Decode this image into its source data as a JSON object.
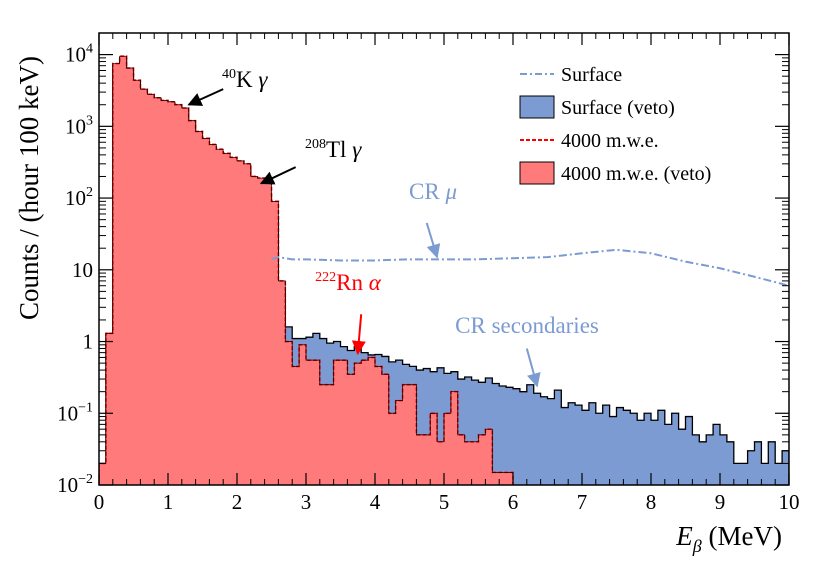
{
  "chart_data": {
    "type": "histogram",
    "title": "",
    "xlabel_main": "E",
    "xlabel_sub": "β",
    "xlabel_unit": " (MeV)",
    "ylabel": "Counts / (hour 100 keV)",
    "xlim": [
      0,
      10
    ],
    "ylim": [
      0.01,
      20000
    ],
    "yscale": "log",
    "x_ticks": [
      0,
      1,
      2,
      3,
      4,
      5,
      6,
      7,
      8,
      9,
      10
    ],
    "y_ticks": [
      {
        "value": 0.01,
        "base": "10",
        "exp": "−2"
      },
      {
        "value": 0.1,
        "base": "10",
        "exp": "−1"
      },
      {
        "value": 1,
        "base": "1",
        "exp": ""
      },
      {
        "value": 10,
        "base": "10",
        "exp": ""
      },
      {
        "value": 100,
        "base": "10",
        "exp": "2"
      },
      {
        "value": 1000,
        "base": "10",
        "exp": "3"
      },
      {
        "value": 10000,
        "base": "10",
        "exp": "4"
      }
    ],
    "legend_position": "top-right",
    "legend": [
      {
        "label": "Surface",
        "style": "dash-dot",
        "color": "#7b9bd2"
      },
      {
        "label": "Surface (veto)",
        "style": "fill",
        "color": "#7b9bd2"
      },
      {
        "label": "4000 m.w.e.",
        "style": "dashed",
        "color": "#ff0000"
      },
      {
        "label": "4000 m.w.e. (veto)",
        "style": "fill",
        "color": "#ff7b7b"
      }
    ],
    "bin_edges_start": 0,
    "bin_width": 0.1,
    "series": [
      {
        "name": "Surface (veto)",
        "style": "filled-step",
        "fill": "#7b9bd2",
        "values": [
          0.02,
          1.3,
          7000,
          9000,
          6000,
          4200,
          3200,
          2700,
          2400,
          2200,
          2100,
          1900,
          1600,
          1100,
          750,
          600,
          480,
          400,
          360,
          330,
          300,
          280,
          150,
          130,
          110,
          55,
          5.5,
          1.6,
          1.1,
          1.1,
          1.15,
          1.3,
          1.1,
          0.95,
          1.0,
          0.85,
          0.75,
          0.85,
          0.7,
          0.65,
          0.66,
          0.62,
          0.52,
          0.55,
          0.48,
          0.45,
          0.4,
          0.42,
          0.38,
          0.43,
          0.36,
          0.38,
          0.3,
          0.32,
          0.29,
          0.27,
          0.31,
          0.26,
          0.24,
          0.23,
          0.22,
          0.2,
          0.25,
          0.19,
          0.17,
          0.16,
          0.21,
          0.12,
          0.14,
          0.13,
          0.11,
          0.14,
          0.1,
          0.13,
          0.09,
          0.12,
          0.11,
          0.1,
          0.08,
          0.1,
          0.08,
          0.11,
          0.07,
          0.1,
          0.06,
          0.09,
          0.05,
          0.04,
          0.05,
          0.07,
          0.05,
          0.04,
          0.02,
          0.02,
          0.03,
          0.04,
          0.02,
          0.04,
          0.02,
          0.03
        ]
      },
      {
        "name": "4000 m.w.e. (veto)",
        "style": "filled-step",
        "fill": "#ff7b7b",
        "values": [
          0.02,
          1.3,
          7500,
          9500,
          6500,
          4400,
          3300,
          2800,
          2500,
          2300,
          2200,
          2000,
          1800,
          1200,
          850,
          680,
          560,
          480,
          420,
          370,
          330,
          300,
          200,
          190,
          180,
          90,
          7.0,
          1.0,
          0.45,
          0.9,
          0.55,
          0.55,
          0.25,
          0.25,
          0.55,
          0.55,
          0.35,
          0.5,
          0.55,
          0.6,
          0.45,
          0.35,
          0.1,
          0.15,
          0.25,
          0.25,
          0.05,
          0.05,
          0.1,
          0.04,
          0.1,
          0.2,
          0.05,
          0.04,
          0.04,
          0.05,
          0.06,
          0.015,
          0.015,
          0.015
        ]
      },
      {
        "name": "Surface",
        "style": "dash-dot",
        "color": "#7b9bd2",
        "x": [
          2.5,
          2.6,
          2.8,
          3.0,
          3.5,
          4.0,
          4.5,
          5.0,
          5.5,
          6.0,
          6.5,
          7.0,
          7.5,
          8.0,
          8.5,
          9.0,
          9.5,
          10.0
        ],
        "values": [
          14,
          15,
          14,
          14,
          13.5,
          13.5,
          14,
          14,
          14,
          14.5,
          15,
          17,
          19,
          17,
          13,
          10.5,
          8,
          6
        ]
      }
    ],
    "annotations": [
      {
        "pre": "40",
        "text": "K ",
        "greek": "γ",
        "color": "#000000",
        "arrow_tip": [
          1.3,
          2000
        ],
        "arrow_from": [
          1.8,
          3300
        ]
      },
      {
        "pre": "208",
        "text": "Tl ",
        "greek": "γ",
        "color": "#000000",
        "arrow_tip": [
          2.35,
          160
        ],
        "arrow_from": [
          2.85,
          270
        ]
      },
      {
        "pre": "",
        "text": "CR ",
        "greek": "μ",
        "color": "#7b9bd2",
        "arrow_tip": [
          4.9,
          15
        ],
        "arrow_from": [
          4.75,
          45
        ]
      },
      {
        "pre": "222",
        "text": "Rn ",
        "greek": "α",
        "color": "#ff0000",
        "arrow_tip": [
          3.75,
          0.68
        ],
        "arrow_from": [
          3.8,
          2.4
        ]
      },
      {
        "pre": "",
        "text": "CR secondaries",
        "greek": "",
        "color": "#7b9bd2",
        "arrow_tip": [
          6.35,
          0.24
        ],
        "arrow_from": [
          6.2,
          0.8
        ]
      }
    ]
  }
}
